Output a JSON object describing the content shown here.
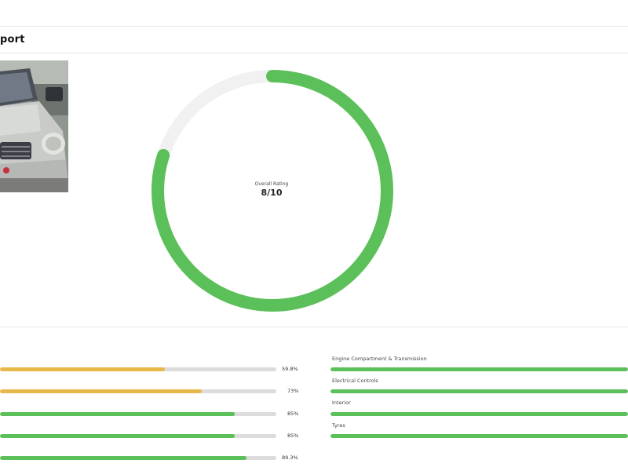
{
  "page": {
    "title": "port"
  },
  "rating": {
    "label": "Overall Rating",
    "score_text": "8/10",
    "value": 8,
    "max": 10,
    "color": "#5cc05a",
    "track_color": "#f1f1f1"
  },
  "left_bars": [
    {
      "percent_text": "59.8%",
      "value": 59.8,
      "color": "#e9b84a"
    },
    {
      "percent_text": "73%",
      "value": 73,
      "color": "#e9b84a"
    },
    {
      "percent_text": "85%",
      "value": 85,
      "color": "#5cc05a"
    },
    {
      "percent_text": "85%",
      "value": 85,
      "color": "#5cc05a"
    },
    {
      "percent_text": "89.3%",
      "value": 89.3,
      "color": "#5cc05a"
    }
  ],
  "right_bars": [
    {
      "label": "Engine Compartment & Transmission",
      "color": "#5cc05a"
    },
    {
      "label": "Electrical Controls",
      "color": "#5cc05a"
    },
    {
      "label": "Interior",
      "color": "#5cc05a"
    },
    {
      "label": "Tyres",
      "color": "#5cc05a"
    }
  ]
}
